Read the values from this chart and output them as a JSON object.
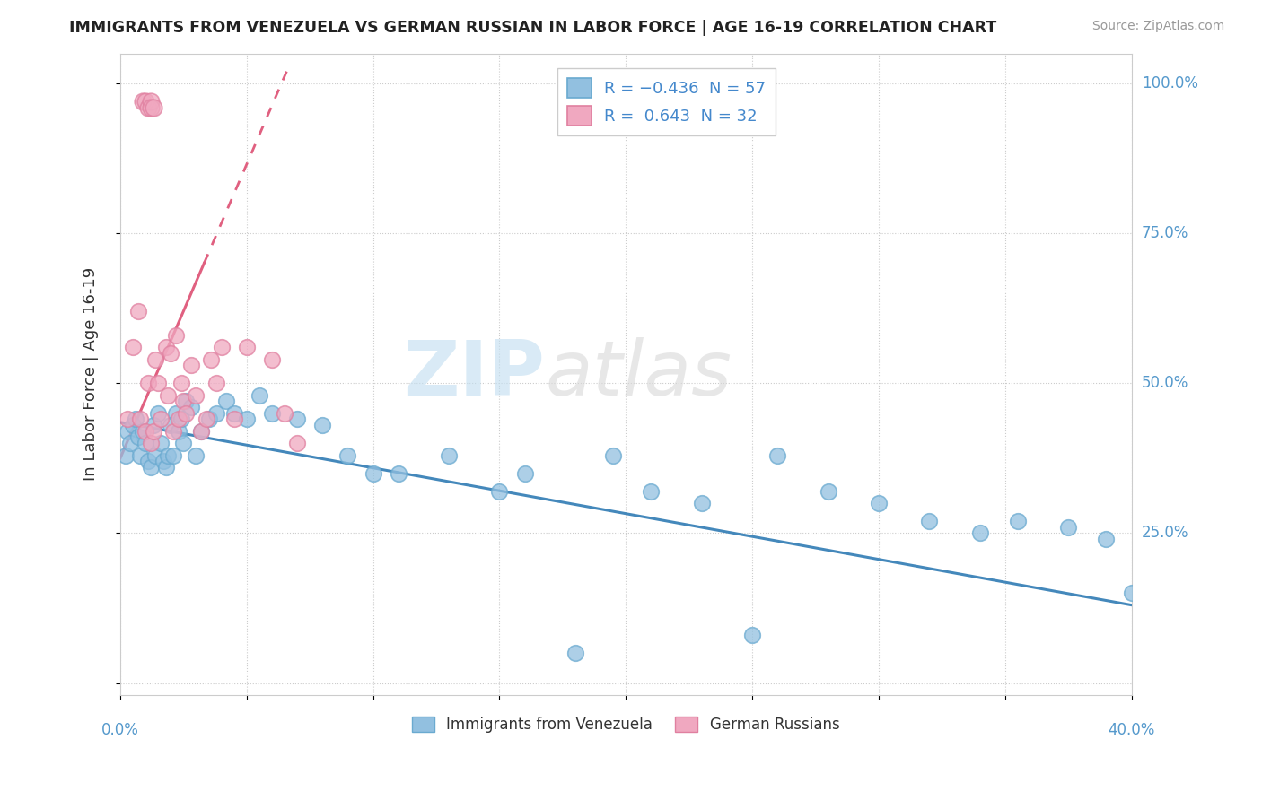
{
  "title": "IMMIGRANTS FROM VENEZUELA VS GERMAN RUSSIAN IN LABOR FORCE | AGE 16-19 CORRELATION CHART",
  "source": "Source: ZipAtlas.com",
  "ylabel": "In Labor Force | Age 16-19",
  "ylabel_vals": [
    0.0,
    0.25,
    0.5,
    0.75,
    1.0
  ],
  "ylabel_labels": [
    "",
    "25.0%",
    "50.0%",
    "75.0%",
    "100.0%"
  ],
  "xlim": [
    0.0,
    0.4
  ],
  "ylim": [
    -0.02,
    1.05
  ],
  "watermark_zip": "ZIP",
  "watermark_atlas": "atlas",
  "blue_color": "#92c0e0",
  "pink_color": "#f0a8c0",
  "blue_edge_color": "#6aaad0",
  "pink_edge_color": "#e080a0",
  "blue_line_color": "#4488bb",
  "pink_line_color": "#e06080",
  "blue_R": -0.436,
  "blue_N": 57,
  "pink_R": 0.643,
  "pink_N": 32,
  "blue_points_x": [
    0.002,
    0.003,
    0.004,
    0.005,
    0.006,
    0.007,
    0.008,
    0.009,
    0.01,
    0.011,
    0.012,
    0.013,
    0.014,
    0.015,
    0.016,
    0.017,
    0.018,
    0.019,
    0.02,
    0.021,
    0.022,
    0.023,
    0.024,
    0.025,
    0.026,
    0.028,
    0.03,
    0.032,
    0.035,
    0.038,
    0.042,
    0.045,
    0.05,
    0.055,
    0.06,
    0.07,
    0.08,
    0.09,
    0.1,
    0.11,
    0.13,
    0.15,
    0.16,
    0.18,
    0.195,
    0.21,
    0.23,
    0.25,
    0.26,
    0.28,
    0.3,
    0.32,
    0.34,
    0.355,
    0.375,
    0.39,
    0.4
  ],
  "blue_points_y": [
    0.38,
    0.42,
    0.4,
    0.43,
    0.44,
    0.41,
    0.38,
    0.42,
    0.4,
    0.37,
    0.36,
    0.43,
    0.38,
    0.45,
    0.4,
    0.37,
    0.36,
    0.38,
    0.43,
    0.38,
    0.45,
    0.42,
    0.44,
    0.4,
    0.47,
    0.46,
    0.38,
    0.42,
    0.44,
    0.45,
    0.47,
    0.45,
    0.44,
    0.48,
    0.45,
    0.44,
    0.43,
    0.38,
    0.35,
    0.35,
    0.38,
    0.32,
    0.35,
    0.05,
    0.38,
    0.32,
    0.3,
    0.08,
    0.38,
    0.32,
    0.3,
    0.27,
    0.25,
    0.27,
    0.26,
    0.24,
    0.15
  ],
  "pink_points_x": [
    0.003,
    0.005,
    0.007,
    0.008,
    0.01,
    0.011,
    0.012,
    0.013,
    0.014,
    0.015,
    0.016,
    0.018,
    0.019,
    0.02,
    0.021,
    0.022,
    0.023,
    0.024,
    0.025,
    0.026,
    0.028,
    0.03,
    0.032,
    0.034,
    0.036,
    0.038,
    0.04,
    0.045,
    0.05,
    0.06,
    0.065,
    0.07
  ],
  "pink_points_y": [
    0.44,
    0.56,
    0.62,
    0.44,
    0.42,
    0.5,
    0.4,
    0.42,
    0.54,
    0.5,
    0.44,
    0.56,
    0.48,
    0.55,
    0.42,
    0.58,
    0.44,
    0.5,
    0.47,
    0.45,
    0.53,
    0.48,
    0.42,
    0.44,
    0.54,
    0.5,
    0.56,
    0.44,
    0.56,
    0.54,
    0.45,
    0.4
  ],
  "pink_top_x": [
    0.009,
    0.01,
    0.011,
    0.012,
    0.012,
    0.013
  ],
  "pink_top_y": [
    0.97,
    0.97,
    0.96,
    0.97,
    0.96,
    0.96
  ],
  "blue_line_x0": 0.0,
  "blue_line_y0": 0.435,
  "blue_line_x1": 0.4,
  "blue_line_y1": 0.13,
  "pink_line_solid_x0": 0.0,
  "pink_line_solid_y0": 0.375,
  "pink_line_solid_x1": 0.025,
  "pink_line_solid_y1": 0.62,
  "pink_line_dash_x0": 0.025,
  "pink_line_dash_y0": 0.62,
  "pink_line_dash_x1": 0.015,
  "pink_line_dash_y1": 0.99
}
